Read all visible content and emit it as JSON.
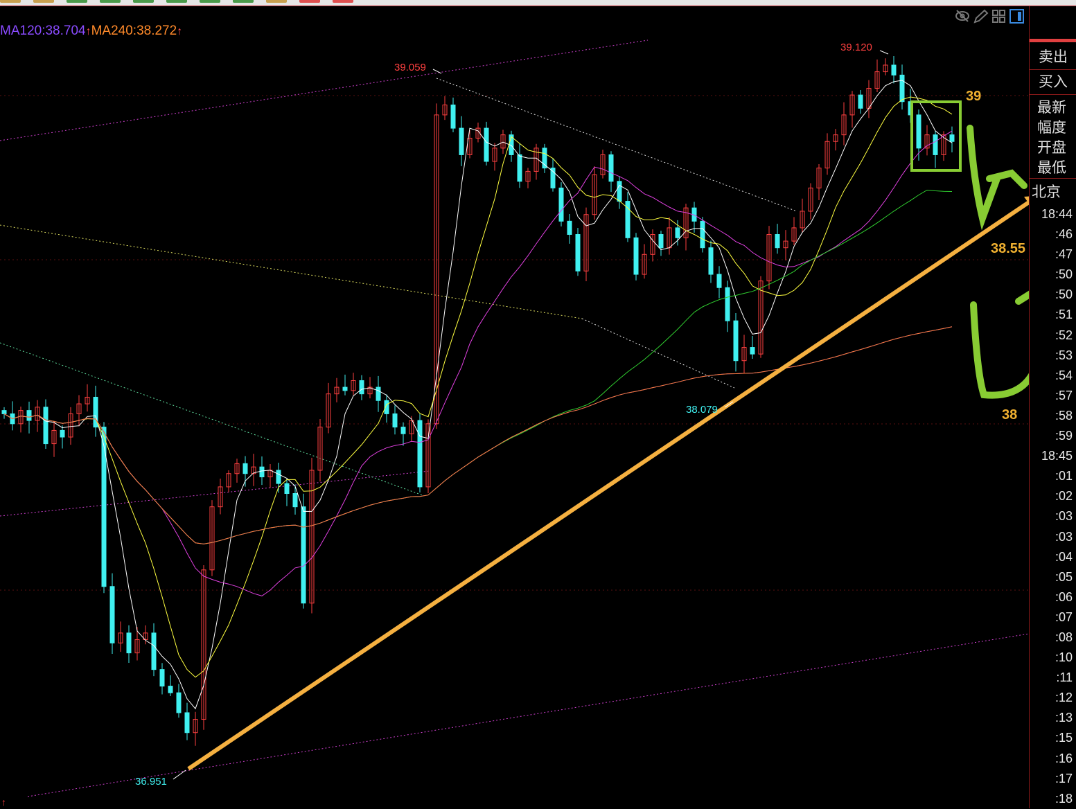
{
  "toolbar": {
    "tab_colors": [
      "#c8a050",
      "#c8a050",
      "#4a9a4a",
      "#4a9a4a",
      "#4a9a4a",
      "#4a9a4a",
      "#4a9a4a",
      "#4a9a4a",
      "#c8a050",
      "#e05050",
      "#e05050"
    ]
  },
  "legend": {
    "ma120": "MA120:38.704",
    "ma240": "MA240:38.272",
    "arrow": "↑"
  },
  "top_icons": [
    "eye-off-icon",
    "pencil-icon",
    "grid-icon",
    "panel-icon"
  ],
  "right_panel": {
    "sell": "卖出",
    "buy": "买入",
    "fields": [
      "最新",
      "幅度",
      "开盘",
      "最低"
    ],
    "city": "北京",
    "times": [
      "18:44",
      ":46",
      ":47",
      ":50",
      ":50",
      ":51",
      ":52",
      ":53",
      ":54",
      ":57",
      ":58",
      ":59",
      "18:45",
      ":01",
      ":02",
      ":03",
      ":03",
      ":04",
      ":05",
      ":06",
      ":07",
      ":08",
      ":10",
      ":11",
      ":12",
      ":13",
      ":15",
      ":16",
      ":17",
      ":18"
    ]
  },
  "annotations": {
    "level_high": "39",
    "level_mid": "38.55",
    "level_low": "38"
  },
  "chart_data": {
    "type": "candlestick",
    "ylim": [
      36.951,
      39.12
    ],
    "grid": false,
    "price_labels": {
      "high_left": "39.059",
      "high_right": "39.120",
      "low": "36.951",
      "swing_low": "38.079"
    },
    "closes": [
      38.02,
      37.99,
      38.03,
      38.0,
      38.04,
      37.93,
      37.97,
      37.95,
      38.02,
      38.05,
      38.07,
      37.98,
      37.5,
      37.33,
      37.36,
      37.3,
      37.34,
      37.36,
      37.25,
      37.2,
      37.18,
      37.12,
      37.06,
      37.1,
      37.55,
      37.74,
      37.8,
      37.84,
      37.87,
      37.84,
      37.86,
      37.83,
      37.85,
      37.81,
      37.78,
      37.74,
      37.45,
      37.85,
      37.98,
      38.08,
      38.1,
      38.09,
      38.12,
      38.08,
      38.1,
      38.06,
      38.02,
      37.98,
      37.96,
      38.0,
      37.8,
      37.99,
      38.92,
      38.95,
      38.88,
      38.8,
      38.85,
      38.88,
      38.78,
      38.82,
      38.86,
      38.8,
      38.72,
      38.75,
      38.82,
      38.76,
      38.7,
      38.6,
      38.56,
      38.45,
      38.62,
      38.74,
      38.8,
      38.72,
      38.66,
      38.55,
      38.44,
      38.5,
      38.56,
      38.52,
      38.58,
      38.55,
      38.64,
      38.6,
      38.52,
      38.44,
      38.4,
      38.3,
      38.18,
      38.22,
      38.2,
      38.42,
      38.56,
      38.52,
      38.54,
      38.58,
      38.63,
      38.7,
      38.76,
      38.84,
      38.86,
      38.92,
      38.98,
      38.94,
      39.0,
      39.05,
      39.07,
      39.04,
      38.96,
      38.92,
      38.82,
      38.86,
      38.8,
      38.86,
      38.84
    ],
    "moving_averages": [
      {
        "name": "MA5",
        "period": 5,
        "color": "#ffffff"
      },
      {
        "name": "MA10",
        "period": 10,
        "color": "#ffff40"
      },
      {
        "name": "MA20",
        "period": 20,
        "color": "#e040e0"
      },
      {
        "name": "MA60",
        "period": 60,
        "color": "#30d030"
      },
      {
        "name": "MA120",
        "period": 120,
        "color": "#6a4bff"
      },
      {
        "name": "MA240",
        "period": 240,
        "color": "#ff7a30"
      }
    ],
    "colors": {
      "up": "#ff4040",
      "down": "#40f0f0"
    }
  }
}
